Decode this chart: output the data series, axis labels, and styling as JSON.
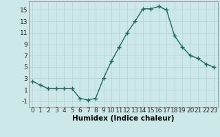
{
  "x": [
    0,
    1,
    2,
    3,
    4,
    5,
    6,
    7,
    8,
    9,
    10,
    11,
    12,
    13,
    14,
    15,
    16,
    17,
    18,
    19,
    20,
    21,
    22,
    23
  ],
  "y": [
    2.5,
    1.8,
    1.2,
    1.2,
    1.2,
    1.2,
    -0.5,
    -0.8,
    -0.5,
    3.0,
    6.0,
    8.5,
    11.0,
    13.0,
    15.2,
    15.2,
    15.6,
    15.0,
    10.5,
    8.5,
    7.0,
    6.5,
    5.5,
    5.0
  ],
  "line_color": "#1a6b5a",
  "marker": "+",
  "marker_size": 4,
  "bg_color": "#cce8e8",
  "grid_color": "#b8d4d4",
  "xlabel": "Humidex (Indice chaleur)",
  "xlim": [
    -0.5,
    23.5
  ],
  "ylim": [
    -2,
    16.5
  ],
  "xticks": [
    0,
    1,
    2,
    3,
    4,
    5,
    6,
    7,
    8,
    9,
    10,
    11,
    12,
    13,
    14,
    15,
    16,
    17,
    18,
    19,
    20,
    21,
    22,
    23
  ],
  "yticks": [
    -1,
    1,
    3,
    5,
    7,
    9,
    11,
    13,
    15
  ],
  "tick_fontsize": 6.5,
  "xlabel_fontsize": 7.5,
  "linewidth": 1.0
}
